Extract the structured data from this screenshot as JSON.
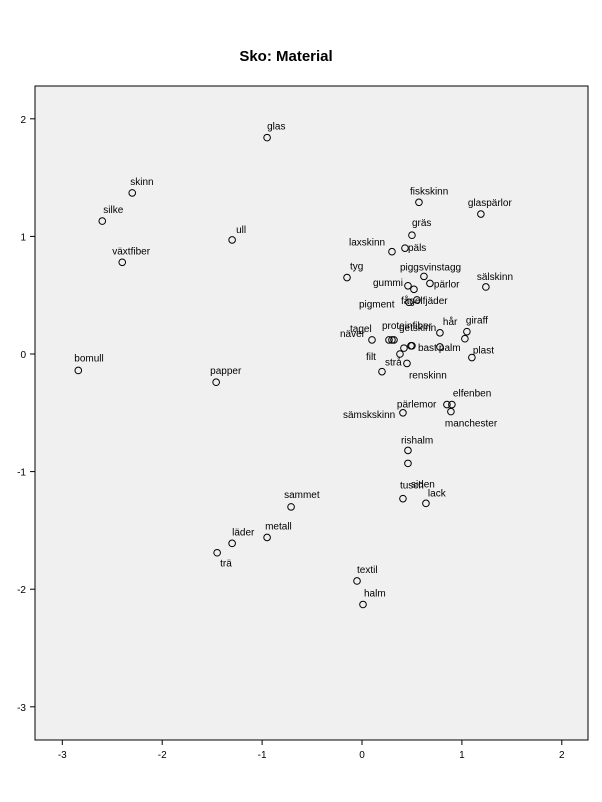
{
  "chart_data": {
    "type": "scatter",
    "title": "Sko: Material",
    "xlabel": "",
    "ylabel": "",
    "xlim": [
      -3.3,
      2.3
    ],
    "ylim": [
      -3.3,
      2.3
    ],
    "x_ticks": [
      -3,
      -2,
      -1,
      0,
      1,
      2
    ],
    "y_ticks": [
      -3,
      -2,
      -1,
      0,
      1,
      2
    ],
    "x_tick_labels": [
      "-3",
      "-2",
      "-1",
      "0",
      "1",
      "2"
    ],
    "y_tick_labels": [
      "-3",
      "-2",
      "-1",
      "0",
      "1",
      "2"
    ],
    "grid": false,
    "plot_background": "#f0f0f0",
    "marker_color": "#000000",
    "points": [
      {
        "label": "glas",
        "x": -0.95,
        "y": 1.84
      },
      {
        "label": "skinn",
        "x": -2.3,
        "y": 1.37
      },
      {
        "label": "silke",
        "x": -2.6,
        "y": 1.13
      },
      {
        "label": "ull",
        "x": -1.3,
        "y": 0.97
      },
      {
        "label": "växtfiber",
        "x": -2.4,
        "y": 0.78
      },
      {
        "label": "bomull",
        "x": -2.84,
        "y": -0.14
      },
      {
        "label": "papper",
        "x": -1.46,
        "y": -0.24
      },
      {
        "label": "fiskskinn",
        "x": 0.57,
        "y": 1.29
      },
      {
        "label": "glaspärlor",
        "x": 1.19,
        "y": 1.19
      },
      {
        "label": "gräs",
        "x": 0.5,
        "y": 1.01
      },
      {
        "label": "laxskinn",
        "x": 0.3,
        "y": 0.87
      },
      {
        "label": "päls",
        "x": 0.43,
        "y": 0.9
      },
      {
        "label": "tyg",
        "x": -0.15,
        "y": 0.65
      },
      {
        "label": "gummi",
        "x": 0.46,
        "y": 0.58
      },
      {
        "label": "piggsvinstagg",
        "x": 0.62,
        "y": 0.66
      },
      {
        "label": "",
        "x": 0.52,
        "y": 0.55
      },
      {
        "label": "pärlor",
        "x": 0.68,
        "y": 0.6
      },
      {
        "label": "sälskinn",
        "x": 1.24,
        "y": 0.57
      },
      {
        "label": "pigment",
        "x": 0.47,
        "y": 0.44
      },
      {
        "label": "fågelfjäder",
        "x": 0.55,
        "y": 0.46
      },
      {
        "label": "tagel",
        "x": 0.1,
        "y": 0.12
      },
      {
        "label": "getskinn",
        "x": 0.27,
        "y": 0.12
      },
      {
        "label": "",
        "x": 0.3,
        "y": 0.12
      },
      {
        "label": "",
        "x": 0.32,
        "y": 0.12
      },
      {
        "label": "hår",
        "x": 0.78,
        "y": 0.18
      },
      {
        "label": "giraff",
        "x": 1.05,
        "y": 0.19
      },
      {
        "label": "",
        "x": 1.03,
        "y": 0.13
      },
      {
        "label": "näver",
        "x": 0.42,
        "y": 0.05
      },
      {
        "label": "proteinfiber",
        "x": 0.49,
        "y": 0.07
      },
      {
        "label": "bast",
        "x": 0.5,
        "y": 0.07
      },
      {
        "label": "palm",
        "x": 0.78,
        "y": 0.06
      },
      {
        "label": "plast",
        "x": 1.1,
        "y": -0.03
      },
      {
        "label": "filt",
        "x": 0.38,
        "y": 0.0
      },
      {
        "label": "strå",
        "x": 0.2,
        "y": -0.15
      },
      {
        "label": "renskinn",
        "x": 0.45,
        "y": -0.08
      },
      {
        "label": "pärlemor",
        "x": 0.85,
        "y": -0.43
      },
      {
        "label": "elfenben",
        "x": 0.9,
        "y": -0.43
      },
      {
        "label": "sämskskinn",
        "x": 0.41,
        "y": -0.5
      },
      {
        "label": "manchester",
        "x": 0.89,
        "y": -0.49
      },
      {
        "label": "rishalm",
        "x": 0.46,
        "y": -0.82
      },
      {
        "label": "siden",
        "x": 0.46,
        "y": -0.93
      },
      {
        "label": "tusch",
        "x": 0.41,
        "y": -1.23
      },
      {
        "label": "lack",
        "x": 0.64,
        "y": -1.27
      },
      {
        "label": "sammet",
        "x": -0.71,
        "y": -1.3
      },
      {
        "label": "metall",
        "x": -0.95,
        "y": -1.56
      },
      {
        "label": "läder",
        "x": -1.3,
        "y": -1.61
      },
      {
        "label": "trä",
        "x": -1.45,
        "y": -1.69
      },
      {
        "label": "textil",
        "x": -0.05,
        "y": -1.93
      },
      {
        "label": "halm",
        "x": 0.01,
        "y": -2.13
      }
    ]
  }
}
